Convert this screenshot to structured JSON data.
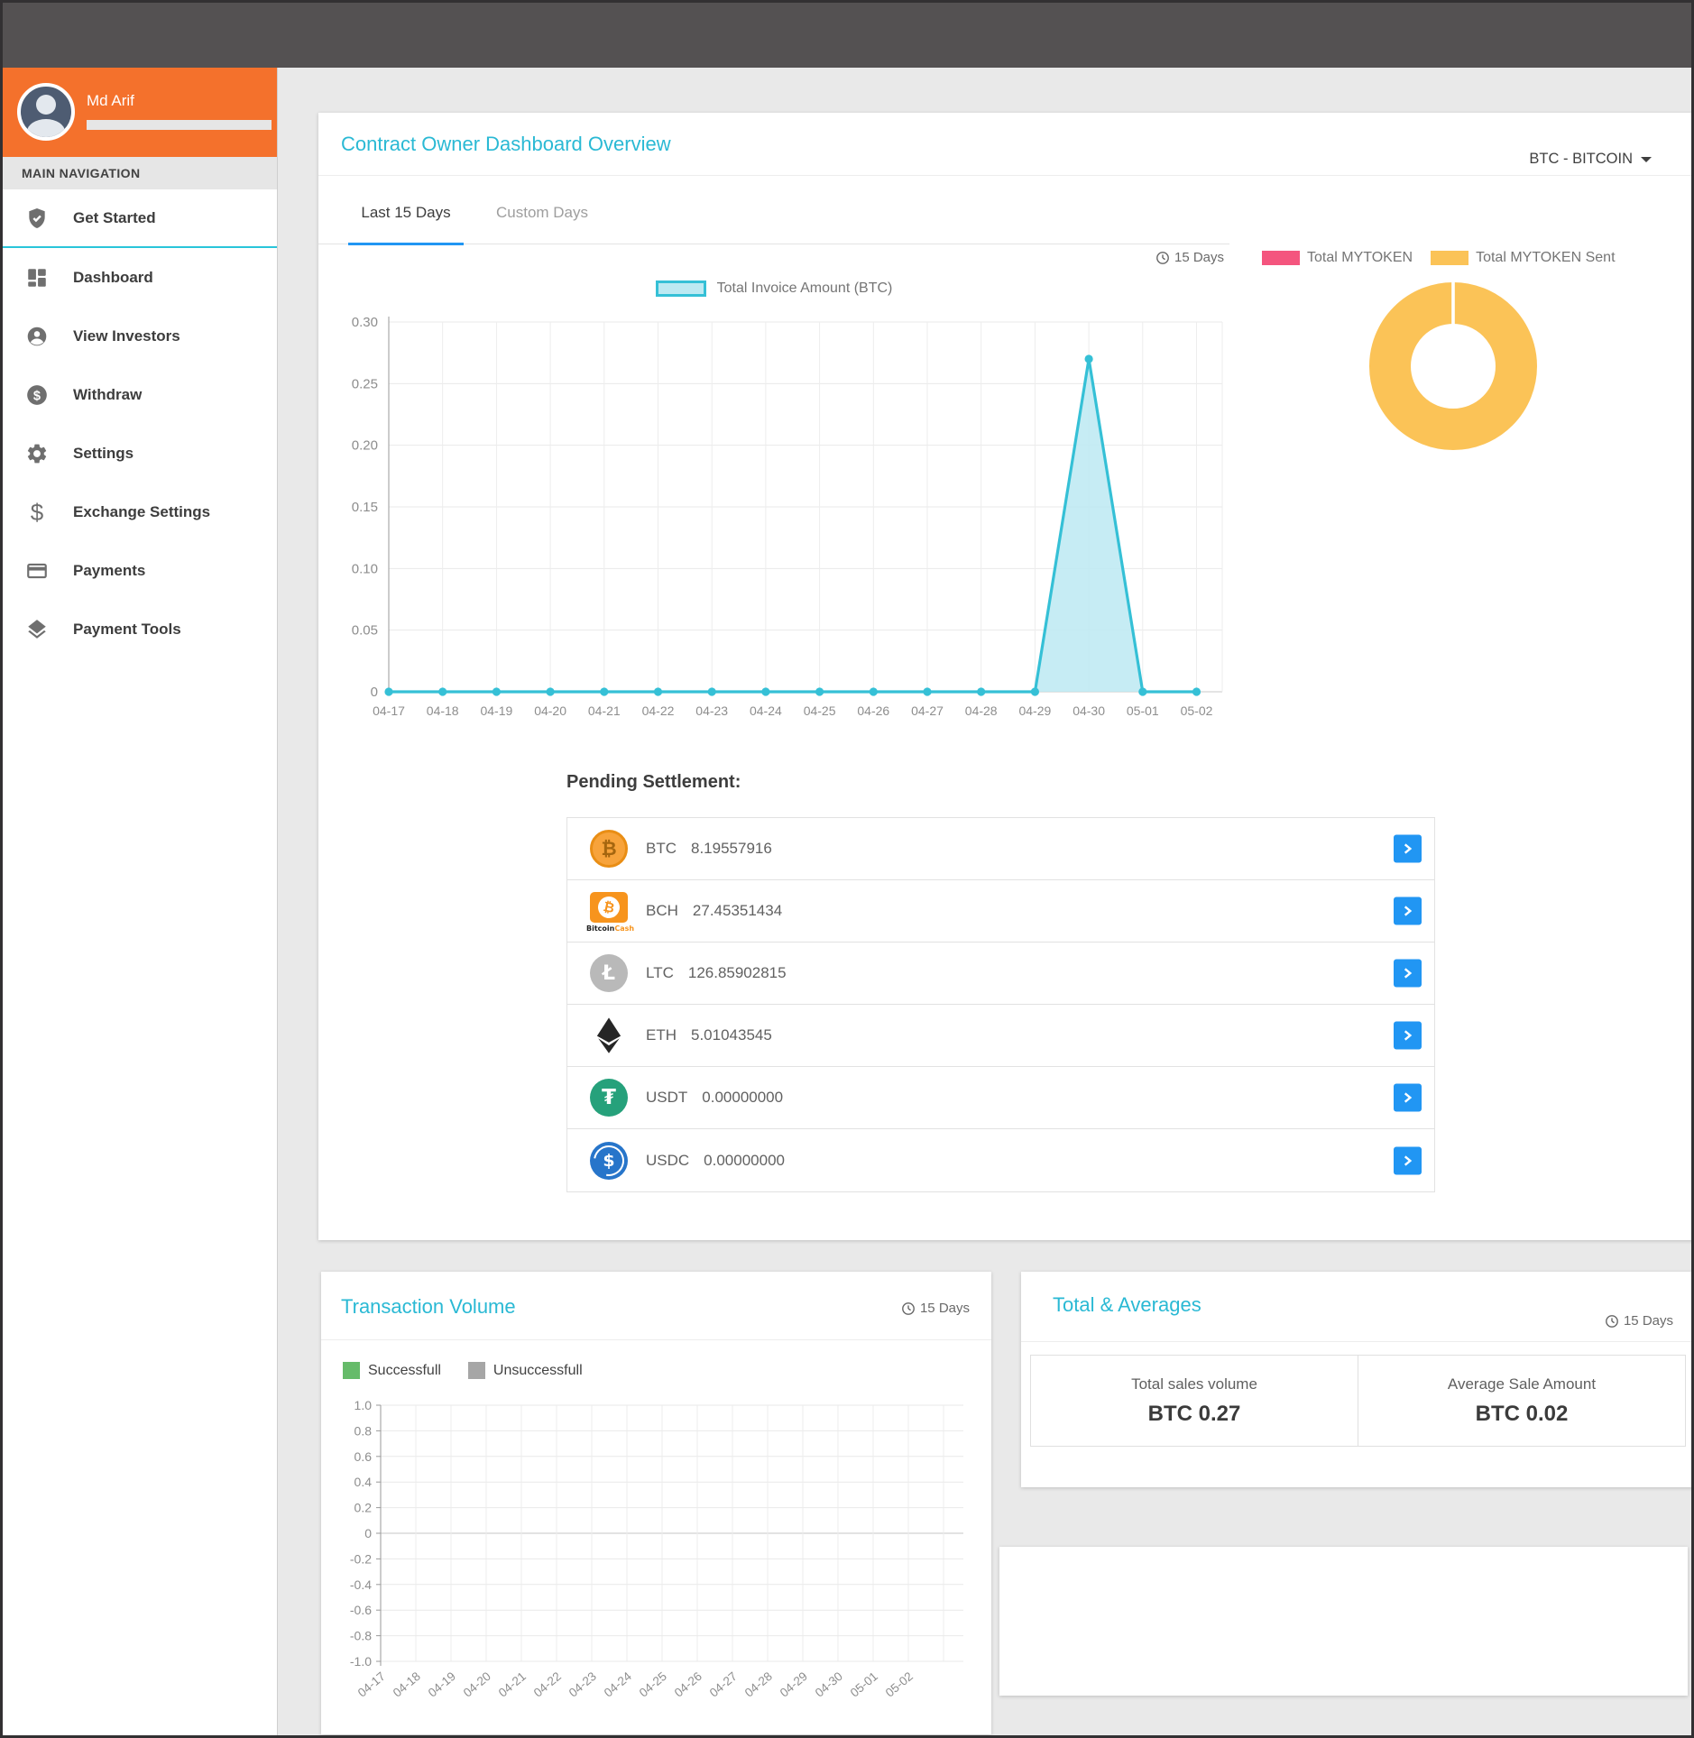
{
  "theme": {
    "accent_cyan": "#2ab9d4",
    "sidebar_orange": "#f4712c",
    "tab_blue": "#2196f3",
    "button_blue": "#2196f3",
    "topbar_gray": "#545152"
  },
  "sidebar": {
    "user": {
      "name": "Md Arif"
    },
    "section_label": "MAIN NAVIGATION",
    "items": [
      {
        "label": "Get Started",
        "icon": "shield-check-icon",
        "active": true
      },
      {
        "label": "Dashboard",
        "icon": "dashboard-grid-icon",
        "active": false
      },
      {
        "label": "View Investors",
        "icon": "person-icon",
        "active": false
      },
      {
        "label": "Withdraw",
        "icon": "dollar-circle-icon",
        "active": false
      },
      {
        "label": "Settings",
        "icon": "gear-icon",
        "active": false
      },
      {
        "label": "Exchange Settings",
        "icon": "dollar-icon",
        "active": false
      },
      {
        "label": "Payments",
        "icon": "credit-card-icon",
        "active": false
      },
      {
        "label": "Payment Tools",
        "icon": "layers-icon",
        "active": false
      }
    ]
  },
  "main": {
    "title": "Contract Owner Dashboard Overview",
    "currency_selector": "BTC - BITCOIN",
    "tabs": [
      {
        "label": "Last 15 Days",
        "active": true
      },
      {
        "label": "Custom Days",
        "active": false
      }
    ],
    "period_label": "15 Days",
    "pending": {
      "heading": "Pending Settlement:",
      "rows": [
        {
          "symbol": "BTC",
          "amount": "8.19557916",
          "glyph": "₿"
        },
        {
          "symbol": "BCH",
          "amount": "27.45351434",
          "glyph": "₿",
          "caption_a": "Bitcoin",
          "caption_b": "Cash"
        },
        {
          "symbol": "LTC",
          "amount": "126.85902815",
          "glyph": "Ł"
        },
        {
          "symbol": "ETH",
          "amount": "5.01043545",
          "glyph": ""
        },
        {
          "symbol": "USDT",
          "amount": "0.00000000",
          "glyph": "₮"
        },
        {
          "symbol": "USDC",
          "amount": "0.00000000",
          "glyph": "$"
        }
      ]
    }
  },
  "cards": {
    "transaction_volume": {
      "title": "Transaction Volume",
      "period_label": "15 Days"
    },
    "totals": {
      "title": "Total & Averages",
      "period_label": "15 Days",
      "cells": [
        {
          "label": "Total sales volume",
          "value": "BTC 0.27"
        },
        {
          "label": "Average Sale Amount",
          "value": "BTC 0.02"
        }
      ]
    }
  },
  "chart_data": [
    {
      "type": "area",
      "title": "Total Invoice Amount (BTC)",
      "legend": "Total Invoice Amount (BTC)",
      "x": [
        "04-17",
        "04-18",
        "04-19",
        "04-20",
        "04-21",
        "04-22",
        "04-23",
        "04-24",
        "04-25",
        "04-26",
        "04-27",
        "04-28",
        "04-29",
        "04-30",
        "05-01",
        "05-02"
      ],
      "values": [
        0,
        0,
        0,
        0,
        0,
        0,
        0,
        0,
        0,
        0,
        0,
        0,
        0,
        0.27,
        0,
        0
      ],
      "ylim": [
        0,
        0.3
      ],
      "yticks": [
        "0",
        "0.05",
        "0.10",
        "0.15",
        "0.20",
        "0.25",
        "0.30"
      ],
      "line_color": "#35c0d6",
      "fill_color": "#bce9f2",
      "grid": true,
      "legend_position": "top-center"
    },
    {
      "type": "pie",
      "subtype": "donut",
      "series": [
        {
          "label": "Total MYTOKEN",
          "color": "#f4557e",
          "value": 0
        },
        {
          "label": "Total MYTOKEN Sent",
          "color": "#fbc357",
          "value": 100
        }
      ],
      "legend_position": "top"
    },
    {
      "type": "bar",
      "title": "Transaction Volume",
      "x": [
        "04-17",
        "04-18",
        "04-19",
        "04-20",
        "04-21",
        "04-22",
        "04-23",
        "04-24",
        "04-25",
        "04-26",
        "04-27",
        "04-28",
        "04-29",
        "04-30",
        "05-01",
        "05-02"
      ],
      "series": [
        {
          "name": "Successfull",
          "color": "#66bb6a",
          "values": [
            0,
            0,
            0,
            0,
            0,
            0,
            0,
            0,
            0,
            0,
            0,
            0,
            0,
            0,
            0,
            0
          ]
        },
        {
          "name": "Unsuccessfull",
          "color": "#a6a6a6",
          "values": [
            0,
            0,
            0,
            0,
            0,
            0,
            0,
            0,
            0,
            0,
            0,
            0,
            0,
            0,
            0,
            0
          ]
        }
      ],
      "ylim": [
        -1.0,
        1.0
      ],
      "yticks": [
        "1.0",
        "0.8",
        "0.6",
        "0.4",
        "0.2",
        "0",
        "-0.2",
        "-0.4",
        "-0.6",
        "-0.8",
        "-1.0"
      ],
      "grid": true,
      "legend_position": "top-left"
    }
  ]
}
